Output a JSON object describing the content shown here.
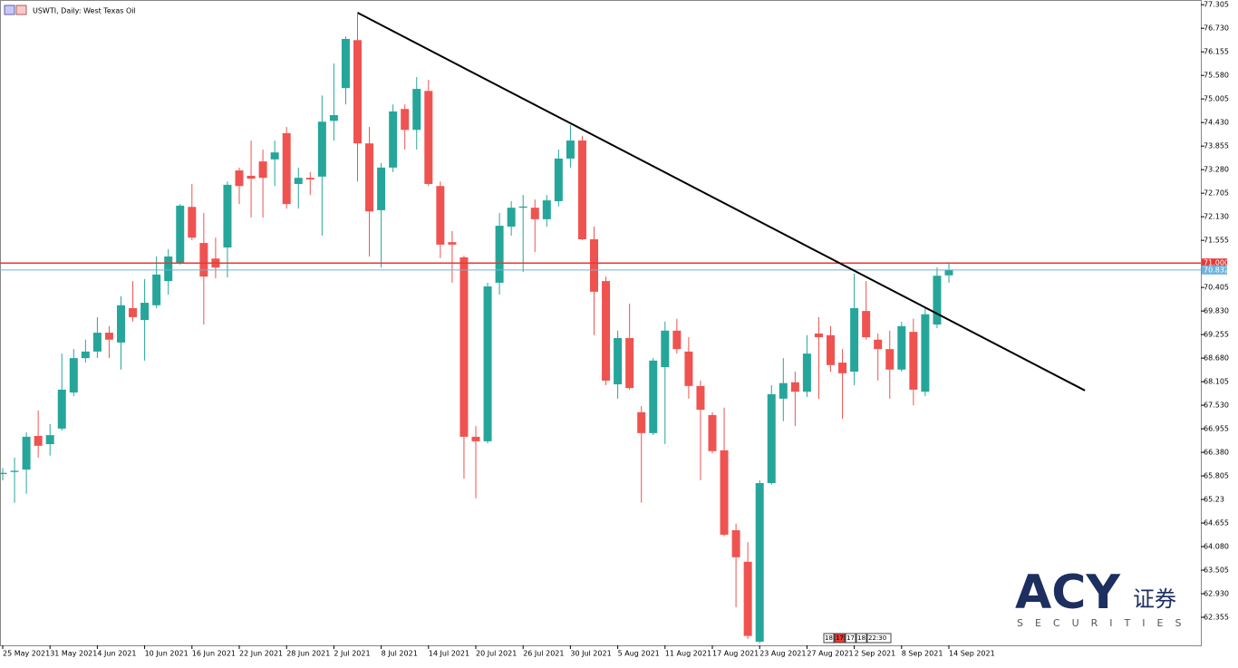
{
  "chart_data": {
    "type": "candlestick",
    "title": "USWTI, Daily: West Texas Oil",
    "categories": [
      "25 May 2021",
      null,
      null,
      null,
      "31 May 2021",
      null,
      null,
      null,
      "4 Jun 2021",
      null,
      null,
      null,
      "10 Jun 2021",
      null,
      null,
      null,
      "16 Jun 2021",
      null,
      null,
      null,
      "22 Jun 2021",
      null,
      null,
      null,
      "28 Jun 2021",
      null,
      null,
      null,
      "2 Jul 2021",
      null,
      null,
      null,
      "8 Jul 2021",
      null,
      null,
      null,
      "14 Jul 2021",
      null,
      null,
      null,
      "20 Jul 2021",
      null,
      null,
      null,
      "26 Jul 2021",
      null,
      null,
      null,
      "30 Jul 2021",
      null,
      null,
      null,
      "5 Aug 2021",
      null,
      null,
      null,
      "11 Aug 2021",
      null,
      null,
      null,
      "17 Aug 2021",
      null,
      null,
      null,
      "23 Aug 2021",
      null,
      null,
      null,
      "27 Aug 2021",
      null,
      null,
      null,
      "2 Sep 2021",
      null,
      null,
      null,
      "8 Sep 2021",
      null,
      null,
      null,
      "14 Sep 2021"
    ],
    "open": [
      65.85,
      65.9,
      65.96,
      66.78,
      66.58,
      66.96,
      67.84,
      68.68,
      68.84,
      69.3,
      69.06,
      69.9,
      69.61,
      69.97,
      70.56,
      71.0,
      72.37,
      71.49,
      71.11,
      71.38,
      73.26,
      73.13,
      73.48,
      73.53,
      74.17,
      72.93,
      73.08,
      73.11,
      74.47,
      75.27,
      76.44,
      73.92,
      72.29,
      73.33,
      74.76,
      74.25,
      75.2,
      72.88,
      71.51,
      71.14,
      66.76,
      66.65,
      70.52,
      71.89,
      72.35,
      72.35,
      72.07,
      72.51,
      73.55,
      73.99,
      71.58,
      70.56,
      68.04,
      69.17,
      67.36,
      66.85,
      68.46,
      69.35,
      68.84,
      68.0,
      67.29,
      66.43,
      64.48,
      63.71,
      61.76,
      65.63,
      67.69,
      68.09,
      67.86,
      69.28,
      69.24,
      68.57,
      68.35,
      69.83,
      69.13,
      68.9,
      68.4,
      69.32,
      67.86,
      69.5,
      70.7
    ],
    "high": [
      66.0,
      66.25,
      66.87,
      67.4,
      67.07,
      68.79,
      68.9,
      69.13,
      69.68,
      69.46,
      70.19,
      70.56,
      70.61,
      71.16,
      71.34,
      72.44,
      72.93,
      72.22,
      71.62,
      72.99,
      73.33,
      73.99,
      73.77,
      73.99,
      74.32,
      73.33,
      73.22,
      75.09,
      75.87,
      76.53,
      77.08,
      74.32,
      73.44,
      74.87,
      74.87,
      75.54,
      75.47,
      72.99,
      71.78,
      71.18,
      67.02,
      70.52,
      72.22,
      72.51,
      72.66,
      72.55,
      72.66,
      73.77,
      74.37,
      74.1,
      71.89,
      70.67,
      69.35,
      70.01,
      67.51,
      68.68,
      69.57,
      69.64,
      69.19,
      68.13,
      67.36,
      67.47,
      64.64,
      64.19,
      65.7,
      68.02,
      68.68,
      68.35,
      69.24,
      69.68,
      69.46,
      68.9,
      70.74,
      70.56,
      69.28,
      69.35,
      69.57,
      69.64,
      69.9,
      70.89,
      71.0
    ],
    "low": [
      65.7,
      65.15,
      65.37,
      66.25,
      66.3,
      66.91,
      67.75,
      68.57,
      68.68,
      68.68,
      68.4,
      69.57,
      68.62,
      69.9,
      70.23,
      70.96,
      71.56,
      69.5,
      70.63,
      70.65,
      72.44,
      72.11,
      72.11,
      72.88,
      72.33,
      72.33,
      72.66,
      71.67,
      73.99,
      74.87,
      72.99,
      71.16,
      70.89,
      73.22,
      73.77,
      73.77,
      72.88,
      71.12,
      70.52,
      65.74,
      65.26,
      66.6,
      70.23,
      71.67,
      70.78,
      71.27,
      71.89,
      72.38,
      73.33,
      71.56,
      69.24,
      68.02,
      67.69,
      67.91,
      65.15,
      66.8,
      66.58,
      68.79,
      67.69,
      65.7,
      66.36,
      64.33,
      62.6,
      61.83,
      61.72,
      65.59,
      67.14,
      67.02,
      67.73,
      67.69,
      68.35,
      67.2,
      68.02,
      69.13,
      68.13,
      67.69,
      68.35,
      67.53,
      67.75,
      69.41,
      70.52
    ],
    "close": [
      65.88,
      65.93,
      66.76,
      66.54,
      66.8,
      67.91,
      68.68,
      68.84,
      69.3,
      69.13,
      69.97,
      69.68,
      70.03,
      70.72,
      71.16,
      72.4,
      71.62,
      70.67,
      70.89,
      72.91,
      72.88,
      73.06,
      73.08,
      73.7,
      72.44,
      73.08,
      73.04,
      74.45,
      74.61,
      76.47,
      73.92,
      72.26,
      73.33,
      74.7,
      74.25,
      75.25,
      72.93,
      71.45,
      71.45,
      66.76,
      66.65,
      70.43,
      71.91,
      72.35,
      72.38,
      72.07,
      72.53,
      73.55,
      73.99,
      71.58,
      70.3,
      68.13,
      69.17,
      67.95,
      66.85,
      68.62,
      69.35,
      68.9,
      68.0,
      67.42,
      66.41,
      64.37,
      63.82,
      61.9,
      65.63,
      67.8,
      68.07,
      67.86,
      68.79,
      69.19,
      68.51,
      68.31,
      69.9,
      69.19,
      68.9,
      68.4,
      69.46,
      67.91,
      69.75,
      70.69,
      70.832
    ],
    "up_color": "#26a69a",
    "down_color": "#ef5350",
    "ylim": [
      61.67,
      77.42
    ],
    "yticks": [
      77.305,
      {
        "value": 76.73,
        "label": "76.730"
      },
      76.155,
      {
        "value": 75.58,
        "label": "75.580"
      },
      75.005,
      {
        "value": 74.43,
        "label": "74.430"
      },
      73.855,
      {
        "value": 73.28,
        "label": "73.280"
      },
      72.705,
      {
        "value": 72.13,
        "label": "72.130"
      },
      71.555,
      70.405,
      {
        "value": 69.83,
        "label": "69.830"
      },
      69.255,
      {
        "value": 68.68,
        "label": "68.680"
      },
      68.105,
      {
        "value": 67.53,
        "label": "67.530"
      },
      66.955,
      {
        "value": 66.38,
        "label": "66.380"
      },
      65.805,
      65.23,
      64.655,
      {
        "value": 64.08,
        "label": "64.080"
      },
      63.505,
      {
        "value": 62.93,
        "label": "62.930"
      },
      62.355
    ],
    "hlines": [
      {
        "value": 71.0,
        "label": "71.000",
        "color": "#e53935"
      },
      {
        "value": 70.832,
        "color": "#6fb3dc"
      }
    ],
    "trendline": {
      "x": [
        30,
        91.5
      ],
      "y": [
        77.11,
        67.89
      ],
      "color": "#000000"
    }
  },
  "time_labels": [
    "18:",
    "17:",
    "17:",
    "18:",
    "22:30"
  ],
  "logo": {
    "name": "ACY",
    "chinese": "证券",
    "tagline": "SECURITIES"
  }
}
